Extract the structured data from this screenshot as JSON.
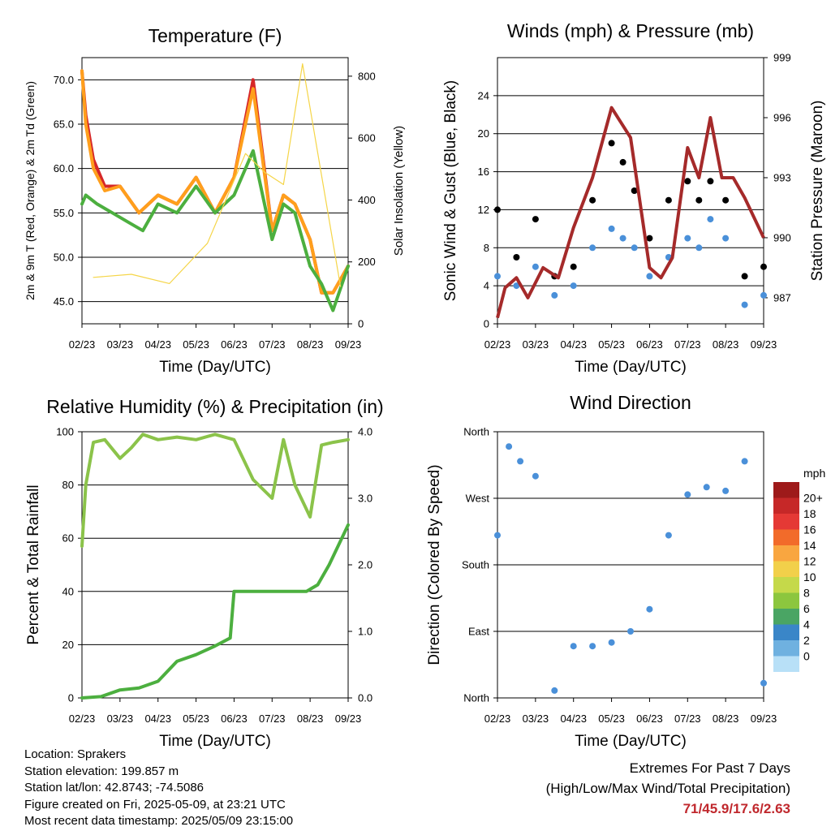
{
  "chart_data": [
    {
      "type": "line",
      "title": "Temperature (F)",
      "xlabel": "Time (Day/UTC)",
      "ylabel": "2m & 9m T (Red, Orange) & 2m Td (Green)",
      "y2label": "Solar Insolation (Yellow)",
      "x_ticks": [
        "02/23",
        "03/23",
        "04/23",
        "05/23",
        "06/23",
        "07/23",
        "08/23",
        "09/23"
      ],
      "ylim": [
        42.5,
        72.5
      ],
      "y_ticks": [
        "45.0",
        "50.0",
        "55.0",
        "60.0",
        "65.0",
        "70.0"
      ],
      "y2lim": [
        0,
        860
      ],
      "y2_ticks": [
        "0",
        "200",
        "400",
        "600",
        "800"
      ],
      "grid": true,
      "series": [
        {
          "color": "#d62728",
          "x": [
            0,
            0.1,
            0.3,
            0.6,
            1,
            1.5,
            2,
            2.5,
            3,
            3.5,
            4,
            4.5,
            5,
            5.3,
            5.6,
            6,
            6.3,
            6.6,
            7
          ],
          "values": [
            71,
            66,
            61,
            58,
            58,
            55,
            57,
            56,
            59,
            55,
            59,
            70,
            53,
            57,
            56,
            52,
            46,
            46,
            49
          ]
        },
        {
          "color": "#ff9f1c",
          "x": [
            0,
            0.1,
            0.3,
            0.6,
            1,
            1.5,
            2,
            2.5,
            3,
            3.5,
            4,
            4.5,
            5,
            5.3,
            5.6,
            6,
            6.3,
            6.6,
            7
          ],
          "values": [
            71,
            65,
            60,
            57.5,
            58,
            55,
            57,
            56,
            59,
            55,
            59,
            69,
            53,
            57,
            56,
            52,
            46,
            46,
            49
          ]
        },
        {
          "color": "#4caf3f",
          "x": [
            0,
            0.1,
            0.4,
            0.8,
            1.2,
            1.6,
            2,
            2.5,
            3,
            3.5,
            4,
            4.5,
            5,
            5.3,
            5.6,
            6,
            6.3,
            6.6,
            7
          ],
          "values": [
            56,
            57,
            56,
            55,
            54,
            53,
            56,
            55,
            58,
            55,
            57,
            62,
            52,
            56,
            55,
            49,
            47,
            44,
            49
          ]
        },
        {
          "color": "#f5d547",
          "axis": "y2",
          "x": [
            0.3,
            1.3,
            2.3,
            3.3,
            4.3,
            4.8,
            5.3,
            5.8,
            6.8
          ],
          "values": [
            150,
            160,
            130,
            260,
            550,
            490,
            450,
            840,
            120
          ]
        }
      ]
    },
    {
      "type": "scatter",
      "title": "Winds (mph) & Pressure (mb)",
      "xlabel": "Time (Day/UTC)",
      "ylabel": "Sonic Wind & Gust (Blue, Black)",
      "y2label": "Station Pressure (Maroon)",
      "x_ticks": [
        "02/23",
        "03/23",
        "04/23",
        "05/23",
        "06/23",
        "07/23",
        "08/23",
        "09/23"
      ],
      "ylim": [
        0,
        28
      ],
      "y_ticks": [
        "0",
        "4",
        "8",
        "12",
        "16",
        "20",
        "24"
      ],
      "y2lim": [
        985.7,
        999
      ],
      "y2_ticks": [
        "987",
        "990",
        "993",
        "996",
        "999"
      ],
      "grid": true,
      "series": [
        {
          "color": "#4a90d9",
          "x": [
            0,
            0.5,
            1,
            1.5,
            2,
            2.5,
            3,
            3.3,
            3.6,
            4,
            4.5,
            5,
            5.3,
            5.6,
            6,
            6.5,
            7
          ],
          "values": [
            5,
            4,
            6,
            3,
            4,
            8,
            10,
            9,
            8,
            5,
            7,
            9,
            8,
            11,
            9,
            2,
            3
          ]
        },
        {
          "color": "#000000",
          "x": [
            0,
            0.5,
            1,
            1.5,
            2,
            2.5,
            3,
            3.3,
            3.6,
            4,
            4.5,
            5,
            5.3,
            5.6,
            6,
            6.5,
            7
          ],
          "values": [
            12,
            7,
            11,
            5,
            6,
            13,
            19,
            17,
            14,
            9,
            13,
            15,
            13,
            15,
            13,
            5,
            6
          ]
        },
        {
          "color": "#a52a2a",
          "axis": "y2",
          "x": [
            0,
            0.2,
            0.5,
            0.8,
            1.2,
            1.6,
            2,
            2.5,
            3,
            3.5,
            4,
            4.3,
            4.6,
            5,
            5.3,
            5.6,
            5.9,
            6.2,
            6.5,
            7
          ],
          "values": [
            986,
            987.5,
            988,
            987,
            988.5,
            988,
            990.5,
            993,
            996.5,
            995,
            988.5,
            988,
            989,
            994.5,
            993,
            996,
            993,
            993,
            992,
            990
          ]
        }
      ]
    },
    {
      "type": "line",
      "title": "Relative Humidity (%) & Precipitation (in)",
      "xlabel": "Time (Day/UTC)",
      "ylabel": "Percent & Total Rainfall",
      "x_ticks": [
        "02/23",
        "03/23",
        "04/23",
        "05/23",
        "06/23",
        "07/23",
        "08/23",
        "09/23"
      ],
      "ylim": [
        0,
        100
      ],
      "y_ticks": [
        "0",
        "20",
        "40",
        "60",
        "80",
        "100"
      ],
      "y2lim": [
        0,
        4
      ],
      "y2_ticks": [
        "0.0",
        "1.0",
        "2.0",
        "3.0",
        "4.0"
      ],
      "grid": true,
      "series": [
        {
          "color": "#8bc34a",
          "x": [
            0,
            0.1,
            0.3,
            0.6,
            1,
            1.3,
            1.6,
            2,
            2.5,
            3,
            3.5,
            4,
            4.5,
            5,
            5.3,
            5.6,
            6,
            6.3,
            6.6,
            7
          ],
          "values": [
            57,
            80,
            96,
            97,
            90,
            94,
            99,
            97,
            98,
            97,
            99,
            97,
            82,
            75,
            97,
            80,
            68,
            95,
            96,
            97
          ]
        },
        {
          "color": "#4caf3f",
          "axis": "y2",
          "x": [
            0,
            0.5,
            1,
            1.5,
            2,
            2.5,
            3,
            3.5,
            3.9,
            4,
            4.5,
            5,
            5.5,
            5.9,
            6.2,
            6.5,
            7
          ],
          "values": [
            0,
            0.02,
            0.12,
            0.15,
            0.25,
            0.55,
            0.65,
            0.78,
            0.9,
            1.6,
            1.6,
            1.6,
            1.6,
            1.6,
            1.7,
            2.0,
            2.6
          ]
        }
      ]
    },
    {
      "type": "scatter",
      "title": "Wind Direction",
      "xlabel": "Time (Day/UTC)",
      "ylabel": "Direction (Colored By Speed)",
      "x_ticks": [
        "02/23",
        "03/23",
        "04/23",
        "05/23",
        "06/23",
        "07/23",
        "08/23",
        "09/23"
      ],
      "ylim": [
        0,
        360
      ],
      "y_ticks": [
        "North",
        "East",
        "South",
        "West",
        "North"
      ],
      "legend": {
        "title": "mph",
        "position": "right",
        "labels": [
          "20+",
          "18",
          "16",
          "14",
          "12",
          "10",
          "8",
          "6",
          "4",
          "2",
          "0"
        ],
        "colors": [
          "#9e1a1a",
          "#c62828",
          "#e53935",
          "#f26b2a",
          "#f9a640",
          "#f2d04a",
          "#c5d94a",
          "#8cc63e",
          "#4aa564",
          "#3a86c8",
          "#6fb1e0",
          "#b8e0f7"
        ]
      },
      "series": [
        {
          "color": "#4a90d9",
          "x": [
            0,
            0.3,
            0.6,
            1,
            1.5,
            2,
            2.5,
            3,
            3.5,
            4,
            4.5,
            5,
            5.5,
            6,
            6.5,
            7
          ],
          "values": [
            220,
            340,
            320,
            300,
            10,
            70,
            70,
            75,
            90,
            120,
            220,
            275,
            285,
            280,
            320,
            20
          ]
        }
      ]
    }
  ],
  "footer": {
    "location": "Location: Sprakers",
    "elevation": "Station elevation: 199.857 m",
    "latlon": "Station lat/lon: 42.8743; -74.5086",
    "created": "Figure created on Fri, 2025-05-09, at 23:21 UTC",
    "recent": "Most recent data timestamp: 2025/05/09 23:15:00"
  },
  "extremes": {
    "title": "Extremes For Past 7 Days",
    "subtitle": "(High/Low/Max Wind/Total Precipitation)",
    "values": "71/45.9/17.6/2.63"
  }
}
